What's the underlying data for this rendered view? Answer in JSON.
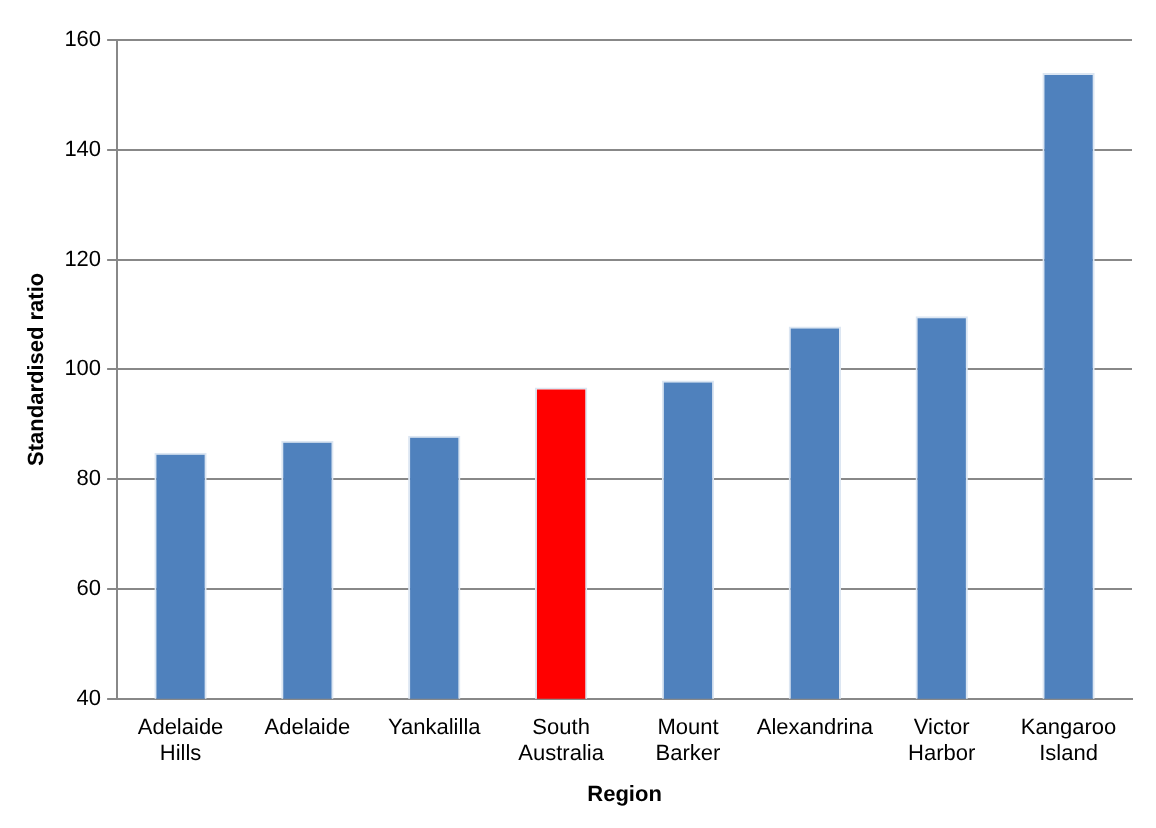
{
  "chart_data": {
    "type": "bar",
    "xlabel": "Region",
    "ylabel": "Standardised ratio",
    "categories": [
      "Adelaide Hills",
      "Adelaide",
      "Yankalilla",
      "South Australia",
      "Mount Barker",
      "Alexandrina",
      "Victor Harbor",
      "Kangaroo Island"
    ],
    "values": [
      84.8,
      87.0,
      87.9,
      96.7,
      98.0,
      107.8,
      109.7,
      154
    ],
    "colors": [
      "#4f81bd",
      "#4f81bd",
      "#4f81bd",
      "#ff0000",
      "#4f81bd",
      "#4f81bd",
      "#4f81bd",
      "#4f81bd"
    ],
    "ylim": [
      40,
      160
    ],
    "yticks": [
      40,
      60,
      80,
      100,
      120,
      140,
      160
    ],
    "grid": "y",
    "legend": false
  }
}
